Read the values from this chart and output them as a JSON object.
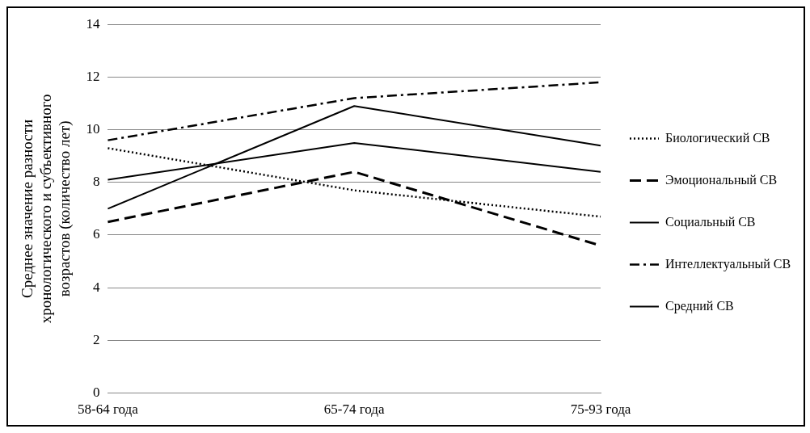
{
  "chart_data": {
    "type": "line",
    "ylabel": "Среднее значение разности хронологического и субъективного возрастов (количество лет)",
    "categories": [
      "58-64 года",
      "65-74 года",
      "75-93 года"
    ],
    "series": [
      {
        "name": "Биологический СВ",
        "color": "#000000",
        "line_style": "dotted",
        "values": [
          9.3,
          7.7,
          6.7
        ]
      },
      {
        "name": "Эмоциональный СВ",
        "color": "#000000",
        "line_style": "dashed",
        "values": [
          6.5,
          8.4,
          5.6
        ]
      },
      {
        "name": "Социальный СВ",
        "color": "#000000",
        "line_style": "solid",
        "values": [
          7.0,
          10.9,
          9.4
        ]
      },
      {
        "name": "Интеллектуальный СВ",
        "color": "#000000",
        "line_style": "dashdot",
        "values": [
          9.6,
          11.2,
          11.8
        ]
      },
      {
        "name": "Средний СВ",
        "color": "#000000",
        "line_style": "solid",
        "values": [
          8.1,
          9.5,
          8.4
        ]
      }
    ],
    "ylim": [
      0,
      14
    ],
    "yticks": [
      0,
      2,
      4,
      6,
      8,
      10,
      12,
      14
    ],
    "grid": "y",
    "legend": "right",
    "marker": "none"
  }
}
